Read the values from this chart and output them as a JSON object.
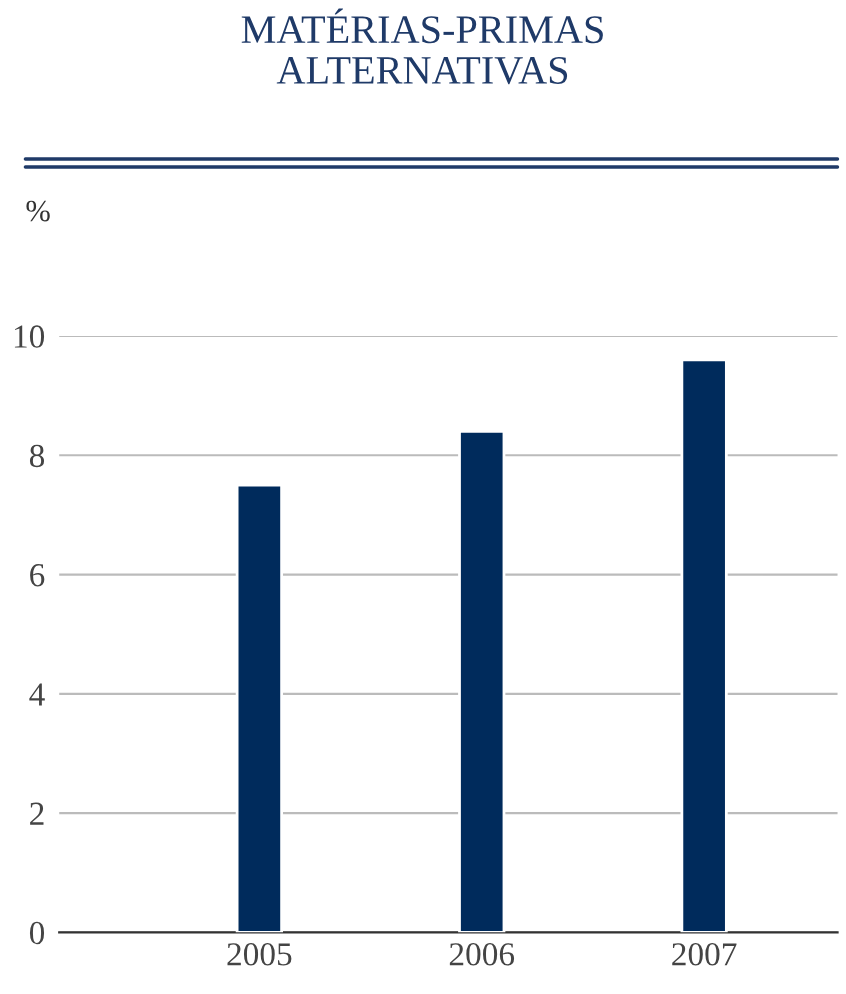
{
  "chart_data": {
    "type": "bar",
    "title": "MATÉRIAS-PRIMAS\nALTERNATIVAS",
    "ylabel": "%",
    "categories": [
      "2005",
      "2006",
      "2007"
    ],
    "values": [
      7.5,
      8.4,
      9.6
    ],
    "color": "#002b5c",
    "ylim": [
      0,
      10
    ],
    "yticks": [
      0,
      2,
      4,
      6,
      8,
      10
    ],
    "grid": "y"
  }
}
